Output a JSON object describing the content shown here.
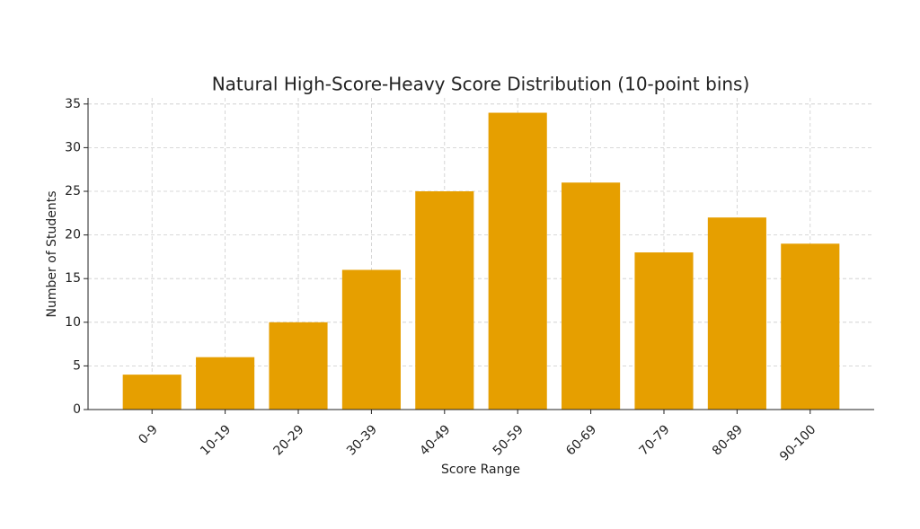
{
  "chart_data": {
    "type": "bar",
    "title": "Natural High-Score-Heavy Score Distribution (10-point bins)",
    "x_label": "Score Range",
    "y_label": "Number of Students",
    "categories": [
      "0-9",
      "10-19",
      "20-29",
      "30-39",
      "40-49",
      "50-59",
      "60-69",
      "70-79",
      "80-89",
      "90-100"
    ],
    "values": [
      4,
      6,
      10,
      16,
      25,
      34,
      26,
      18,
      22,
      19
    ],
    "color": "#e69f00",
    "ylim": [
      0,
      35.7
    ],
    "yticks": [
      0,
      5,
      10,
      15,
      20,
      25,
      30,
      35
    ],
    "grid": true
  }
}
